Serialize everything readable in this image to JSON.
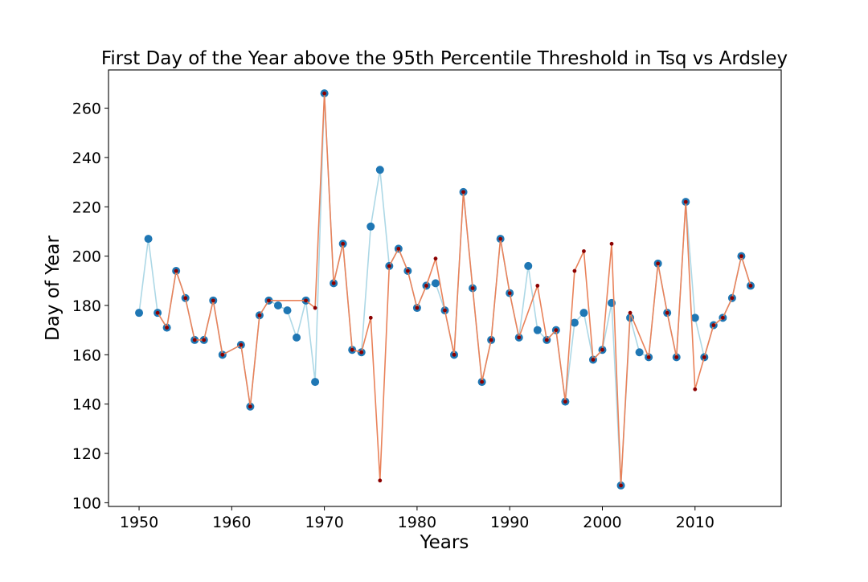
{
  "chart_data": {
    "type": "line",
    "title": "First Day of the Year above the 95th Percentile Threshold in Tsq vs Ardsley",
    "xlabel": "Years",
    "ylabel": "Day of Year",
    "xlim": [
      1946.7,
      2019.3
    ],
    "ylim": [
      98.5,
      275.5
    ],
    "xticks": [
      1950,
      1960,
      1970,
      1980,
      1990,
      2000,
      2010
    ],
    "yticks": [
      100,
      120,
      140,
      160,
      180,
      200,
      220,
      240,
      260
    ],
    "grid": false,
    "legend": "none",
    "series": [
      {
        "color": "#add8e6",
        "marker_color": "#1f77b4",
        "points": [
          [
            1950,
            177
          ],
          [
            1951,
            207
          ],
          [
            1952,
            177
          ],
          [
            1953,
            171
          ],
          [
            1954,
            194
          ],
          [
            1955,
            183
          ],
          [
            1956,
            166
          ],
          [
            1957,
            166
          ],
          [
            1958,
            182
          ],
          [
            1959,
            160
          ],
          [
            1961,
            164
          ],
          [
            1962,
            139
          ],
          [
            1963,
            176
          ],
          [
            1964,
            182
          ],
          [
            1965,
            180
          ],
          [
            1966,
            178
          ],
          [
            1967,
            167
          ],
          [
            1968,
            182
          ],
          [
            1969,
            149
          ],
          [
            1970,
            266
          ],
          [
            1971,
            189
          ],
          [
            1972,
            205
          ],
          [
            1973,
            162
          ],
          [
            1974,
            161
          ],
          [
            1975,
            212
          ],
          [
            1976,
            235
          ],
          [
            1977,
            196
          ],
          [
            1978,
            203
          ],
          [
            1979,
            194
          ],
          [
            1980,
            179
          ],
          [
            1981,
            188
          ],
          [
            1982,
            189
          ],
          [
            1983,
            178
          ],
          [
            1984,
            160
          ],
          [
            1985,
            226
          ],
          [
            1986,
            187
          ],
          [
            1987,
            149
          ],
          [
            1988,
            166
          ],
          [
            1989,
            207
          ],
          [
            1990,
            185
          ],
          [
            1991,
            167
          ],
          [
            1992,
            196
          ],
          [
            1993,
            170
          ],
          [
            1994,
            166
          ],
          [
            1995,
            170
          ],
          [
            1996,
            141
          ],
          [
            1997,
            173
          ],
          [
            1998,
            177
          ],
          [
            1999,
            158
          ],
          [
            2000,
            162
          ],
          [
            2001,
            181
          ],
          [
            2002,
            107
          ],
          [
            2003,
            175
          ],
          [
            2004,
            161
          ],
          [
            2005,
            159
          ],
          [
            2006,
            197
          ],
          [
            2007,
            177
          ],
          [
            2008,
            159
          ],
          [
            2009,
            222
          ],
          [
            2010,
            175
          ],
          [
            2011,
            159
          ],
          [
            2012,
            172
          ],
          [
            2013,
            175
          ],
          [
            2014,
            183
          ],
          [
            2015,
            200
          ],
          [
            2016,
            188
          ]
        ]
      },
      {
        "color": "#e9825a",
        "marker_color": "#8b0000",
        "points": [
          [
            1952,
            177
          ],
          [
            1953,
            171
          ],
          [
            1954,
            194
          ],
          [
            1955,
            183
          ],
          [
            1956,
            166
          ],
          [
            1957,
            166
          ],
          [
            1958,
            182
          ],
          [
            1959,
            160
          ],
          [
            1961,
            164
          ],
          [
            1962,
            139
          ],
          [
            1963,
            176
          ],
          [
            1964,
            182
          ],
          [
            1968,
            182
          ],
          [
            1969,
            179
          ],
          [
            1970,
            266
          ],
          [
            1971,
            189
          ],
          [
            1972,
            205
          ],
          [
            1973,
            162
          ],
          [
            1974,
            161
          ],
          [
            1975,
            175
          ],
          [
            1976,
            109
          ],
          [
            1977,
            196
          ],
          [
            1978,
            203
          ],
          [
            1979,
            194
          ],
          [
            1980,
            179
          ],
          [
            1981,
            188
          ],
          [
            1982,
            199
          ],
          [
            1983,
            178
          ],
          [
            1984,
            160
          ],
          [
            1985,
            226
          ],
          [
            1986,
            187
          ],
          [
            1987,
            149
          ],
          [
            1988,
            166
          ],
          [
            1989,
            207
          ],
          [
            1990,
            185
          ],
          [
            1991,
            167
          ],
          [
            1993,
            188
          ],
          [
            1994,
            166
          ],
          [
            1995,
            170
          ],
          [
            1996,
            141
          ],
          [
            1997,
            194
          ],
          [
            1998,
            202
          ],
          [
            1999,
            158
          ],
          [
            2000,
            162
          ],
          [
            2001,
            205
          ],
          [
            2002,
            107
          ],
          [
            2003,
            177
          ],
          [
            2005,
            159
          ],
          [
            2006,
            197
          ],
          [
            2007,
            177
          ],
          [
            2008,
            159
          ],
          [
            2009,
            222
          ],
          [
            2010,
            146
          ],
          [
            2011,
            159
          ],
          [
            2012,
            172
          ],
          [
            2013,
            175
          ],
          [
            2014,
            183
          ],
          [
            2015,
            200
          ],
          [
            2016,
            188
          ]
        ]
      }
    ]
  }
}
